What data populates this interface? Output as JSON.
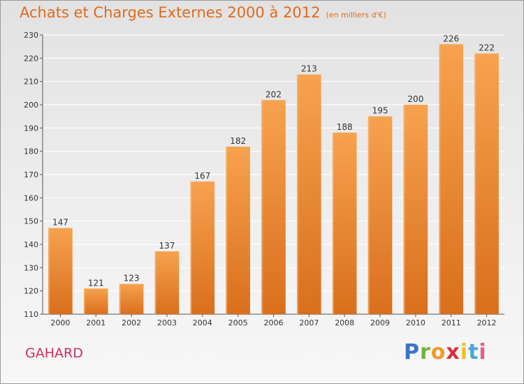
{
  "title": "Achats et Charges Externes 2000 à 2012",
  "unit_note": "(en milliers d'€)",
  "commune": "GAHARD",
  "logo": {
    "text": "Proxiti",
    "letters": [
      "P",
      "r",
      "o",
      "x",
      "i",
      "t",
      "i"
    ]
  },
  "colors": {
    "bar_light": "#f7a24e",
    "bar_dark": "#d96f1c",
    "title": "#e06a1a",
    "commune": "#cc2f5b",
    "gridline": "#ffffff"
  },
  "chart_data": {
    "type": "bar",
    "categories": [
      "2000",
      "2001",
      "2002",
      "2003",
      "2004",
      "2005",
      "2006",
      "2007",
      "2008",
      "2009",
      "2010",
      "2011",
      "2012"
    ],
    "values": [
      147,
      121,
      123,
      137,
      167,
      182,
      202,
      213,
      188,
      195,
      200,
      226,
      222
    ],
    "title": "Achats et Charges Externes 2000 à 2012",
    "subtitle": "(en milliers d'€)",
    "xlabel": "",
    "ylabel": "",
    "ylim": [
      110,
      230
    ],
    "yticks": [
      110,
      120,
      130,
      140,
      150,
      160,
      170,
      180,
      190,
      200,
      210,
      220,
      230
    ],
    "grid": true,
    "data_labels": true
  }
}
